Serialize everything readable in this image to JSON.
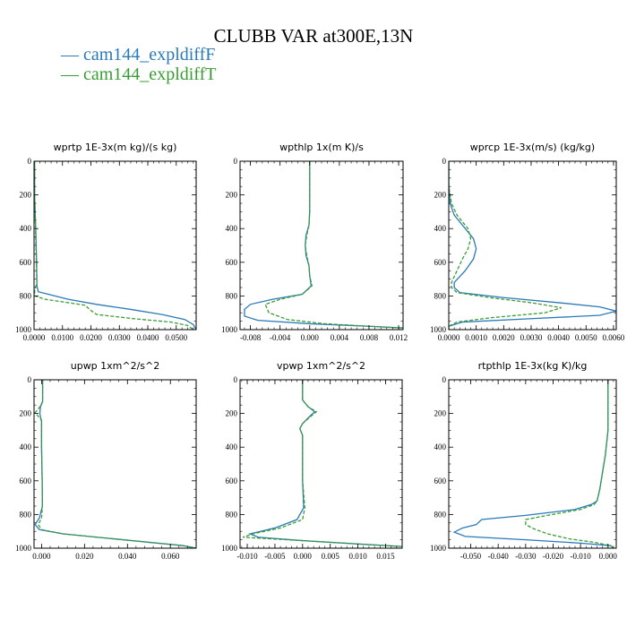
{
  "title": "CLUBB VAR at300E,13N",
  "legend": [
    {
      "name": "cam144_expldiffF",
      "color": "#2a7ab8",
      "dash": "solid"
    },
    {
      "name": "cam144_expldiffT",
      "color": "#3a9d34",
      "dash": "dashed"
    }
  ],
  "chart_data": [
    {
      "type": "line",
      "title": "wprtp   1E-3x(m kg)/(s kg)",
      "xlim": [
        0,
        0.057
      ],
      "ylim": [
        1000,
        0
      ],
      "xticks": [
        0,
        0.01,
        0.02,
        0.03,
        0.04,
        0.05
      ],
      "xtick_labels": [
        "0.0000",
        "0.0100",
        "0.0200",
        "0.0300",
        "0.0400",
        "0.0500"
      ],
      "yticks": [
        0,
        200,
        400,
        600,
        800,
        1000
      ],
      "ytick_labels": [
        "0",
        "200",
        "400",
        "600",
        "800",
        "1000"
      ],
      "series": [
        {
          "name": "cam144_expldiffF",
          "points": [
            [
              0.0002,
              0
            ],
            [
              0.0002,
              200
            ],
            [
              0.0006,
              400
            ],
            [
              0.0009,
              600
            ],
            [
              0.001,
              740
            ],
            [
              0.0015,
              775
            ],
            [
              0.005,
              790
            ],
            [
              0.012,
              820
            ],
            [
              0.022,
              850
            ],
            [
              0.034,
              880
            ],
            [
              0.045,
              910
            ],
            [
              0.053,
              940
            ],
            [
              0.056,
              970
            ],
            [
              0.057,
              1000
            ]
          ]
        },
        {
          "name": "cam144_expldiffT",
          "points": [
            [
              0.0002,
              0
            ],
            [
              0.0002,
              200
            ],
            [
              0.0005,
              400
            ],
            [
              0.0008,
              600
            ],
            [
              0.001,
              720
            ],
            [
              0.0002,
              770
            ],
            [
              0.0003,
              800
            ],
            [
              0.004,
              820
            ],
            [
              0.012,
              840
            ],
            [
              0.018,
              855
            ],
            [
              0.0195,
              880
            ],
            [
              0.022,
              910
            ],
            [
              0.035,
              935
            ],
            [
              0.048,
              955
            ],
            [
              0.054,
              975
            ],
            [
              0.056,
              1000
            ]
          ]
        }
      ]
    },
    {
      "type": "line",
      "title": "wpthlp   1x(m K)/s",
      "xlim": [
        -0.0094,
        0.0126
      ],
      "ylim": [
        1000,
        0
      ],
      "xticks": [
        -0.008,
        -0.004,
        0,
        0.004,
        0.008,
        0.012
      ],
      "xtick_labels": [
        "-0.008",
        "-0.004",
        "0.000",
        "0.004",
        "0.008",
        "0.012"
      ],
      "yticks": [
        0,
        200,
        400,
        600,
        800,
        1000
      ],
      "ytick_labels": [
        "0",
        "200",
        "400",
        "600",
        "800",
        "1000"
      ],
      "series": [
        {
          "name": "cam144_expldiffF",
          "points": [
            [
              0,
              0
            ],
            [
              0,
              200
            ],
            [
              0,
              300
            ],
            [
              -0.0001,
              380
            ],
            [
              -0.0005,
              440
            ],
            [
              -0.0006,
              500
            ],
            [
              -0.0005,
              560
            ],
            [
              -0.0001,
              620
            ],
            [
              0,
              680
            ],
            [
              0.0002,
              740
            ],
            [
              -0.001,
              790
            ],
            [
              -0.005,
              820
            ],
            [
              -0.008,
              850
            ],
            [
              -0.0088,
              880
            ],
            [
              -0.0088,
              920
            ],
            [
              -0.007,
              945
            ],
            [
              0.0,
              965
            ],
            [
              0.008,
              980
            ],
            [
              0.0126,
              990
            ]
          ]
        },
        {
          "name": "cam144_expldiffT",
          "points": [
            [
              0,
              0
            ],
            [
              0,
              200
            ],
            [
              0,
              300
            ],
            [
              -0.0001,
              380
            ],
            [
              -0.0004,
              440
            ],
            [
              -0.0006,
              500
            ],
            [
              -0.0004,
              560
            ],
            [
              -0.0001,
              620
            ],
            [
              0,
              680
            ],
            [
              0.0003,
              740
            ],
            [
              -0.001,
              790
            ],
            [
              -0.004,
              820
            ],
            [
              -0.006,
              850
            ],
            [
              -0.0055,
              900
            ],
            [
              -0.003,
              940
            ],
            [
              0.002,
              965
            ],
            [
              0.008,
              980
            ],
            [
              0.0126,
              990
            ]
          ]
        }
      ]
    },
    {
      "type": "line",
      "title": "wprcp   1E-3x(m/s) (kg/kg)",
      "xlim": [
        0,
        0.0061
      ],
      "ylim": [
        1000,
        0
      ],
      "xticks": [
        0,
        0.001,
        0.002,
        0.003,
        0.004,
        0.005,
        0.006
      ],
      "xtick_labels": [
        "0.0000",
        "0.0010",
        "0.0020",
        "0.0030",
        "0.0040",
        "0.0050",
        "0.0060"
      ],
      "yticks": [
        0,
        200,
        400,
        600,
        800,
        1000
      ],
      "ytick_labels": [
        "0",
        "200",
        "400",
        "600",
        "800",
        "1000"
      ],
      "series": [
        {
          "name": "cam144_expldiffF",
          "points": [
            [
              0,
              0
            ],
            [
              0,
              150
            ],
            [
              5e-05,
              250
            ],
            [
              0.0002,
              320
            ],
            [
              0.0006,
              400
            ],
            [
              0.0009,
              460
            ],
            [
              0.001,
              520
            ],
            [
              0.0009,
              580
            ],
            [
              0.0006,
              650
            ],
            [
              0.0002,
              720
            ],
            [
              0.0002,
              750
            ],
            [
              0.0004,
              780
            ],
            [
              0.002,
              810
            ],
            [
              0.004,
              840
            ],
            [
              0.0055,
              865
            ],
            [
              0.0061,
              890
            ],
            [
              0.0055,
              915
            ],
            [
              0.003,
              935
            ],
            [
              0.0005,
              955
            ],
            [
              0,
              980
            ],
            [
              0,
              1000
            ]
          ]
        },
        {
          "name": "cam144_expldiffT",
          "points": [
            [
              0,
              0
            ],
            [
              0,
              150
            ],
            [
              0.0001,
              250
            ],
            [
              0.0003,
              320
            ],
            [
              0.0007,
              400
            ],
            [
              0.0008,
              460
            ],
            [
              0.0007,
              520
            ],
            [
              0.0005,
              580
            ],
            [
              0.0003,
              650
            ],
            [
              0.0001,
              720
            ],
            [
              0.0001,
              750
            ],
            [
              0.0003,
              780
            ],
            [
              0.0015,
              810
            ],
            [
              0.003,
              840
            ],
            [
              0.0041,
              870
            ],
            [
              0.0035,
              900
            ],
            [
              0.0015,
              930
            ],
            [
              0.0003,
              955
            ],
            [
              0,
              980
            ],
            [
              0,
              1000
            ]
          ]
        }
      ]
    },
    {
      "type": "line",
      "title": "upwp   1xm^2/s^2",
      "xlim": [
        -0.0035,
        0.072
      ],
      "ylim": [
        1000,
        0
      ],
      "xticks": [
        0,
        0.02,
        0.04,
        0.06
      ],
      "xtick_labels": [
        "0.000",
        "0.020",
        "0.040",
        "0.060"
      ],
      "yticks": [
        0,
        200,
        400,
        600,
        800,
        1000
      ],
      "ytick_labels": [
        "0",
        "200",
        "400",
        "600",
        "800",
        "1000"
      ],
      "series": [
        {
          "name": "cam144_expldiffF",
          "points": [
            [
              0.0005,
              0
            ],
            [
              0.0005,
              130
            ],
            [
              -0.0005,
              160
            ],
            [
              -0.0008,
              200
            ],
            [
              0,
              250
            ],
            [
              0,
              400
            ],
            [
              0.0003,
              600
            ],
            [
              0.0004,
              750
            ],
            [
              -0.001,
              820
            ],
            [
              -0.003,
              860
            ],
            [
              -0.001,
              890
            ],
            [
              0.01,
              915
            ],
            [
              0.03,
              940
            ],
            [
              0.05,
              965
            ],
            [
              0.066,
              985
            ],
            [
              0.072,
              1000
            ]
          ]
        },
        {
          "name": "cam144_expldiffT",
          "points": [
            [
              0.0005,
              0
            ],
            [
              0.0005,
              130
            ],
            [
              -0.001,
              165
            ],
            [
              -0.003,
              195
            ],
            [
              0,
              240
            ],
            [
              0,
              400
            ],
            [
              0.0003,
              600
            ],
            [
              0.0004,
              750
            ],
            [
              0,
              820
            ],
            [
              -0.0015,
              860
            ],
            [
              0,
              890
            ],
            [
              0.01,
              915
            ],
            [
              0.03,
              940
            ],
            [
              0.05,
              965
            ],
            [
              0.066,
              985
            ],
            [
              0.072,
              1000
            ]
          ]
        }
      ]
    },
    {
      "type": "line",
      "title": "vpwp   1xm^2/s^2",
      "xlim": [
        -0.0113,
        0.018
      ],
      "ylim": [
        1000,
        0
      ],
      "xticks": [
        -0.01,
        -0.005,
        0,
        0.005,
        0.01,
        0.015
      ],
      "xtick_labels": [
        "-0.010",
        "-0.005",
        "0.000",
        "0.005",
        "0.010",
        "0.015"
      ],
      "yticks": [
        0,
        200,
        400,
        600,
        800,
        1000
      ],
      "ytick_labels": [
        "0",
        "200",
        "400",
        "600",
        "800",
        "1000"
      ],
      "series": [
        {
          "name": "cam144_expldiffF",
          "points": [
            [
              0,
              0
            ],
            [
              0,
              120
            ],
            [
              0.001,
              160
            ],
            [
              0.0022,
              190
            ],
            [
              0.0012,
              220
            ],
            [
              0,
              260
            ],
            [
              -0.0005,
              290
            ],
            [
              0,
              330
            ],
            [
              0,
              600
            ],
            [
              0.0002,
              760
            ],
            [
              -0.001,
              830
            ],
            [
              -0.005,
              880
            ],
            [
              -0.0095,
              915
            ],
            [
              -0.008,
              935
            ],
            [
              0,
              955
            ],
            [
              0.01,
              975
            ],
            [
              0.018,
              990
            ]
          ]
        },
        {
          "name": "cam144_expldiffT",
          "points": [
            [
              0,
              0
            ],
            [
              0,
              120
            ],
            [
              0.001,
              160
            ],
            [
              0.0025,
              190
            ],
            [
              0.0012,
              225
            ],
            [
              0,
              260
            ],
            [
              -0.0005,
              290
            ],
            [
              0,
              330
            ],
            [
              0,
              600
            ],
            [
              0.0004,
              760
            ],
            [
              0,
              830
            ],
            [
              -0.004,
              880
            ],
            [
              -0.009,
              915
            ],
            [
              -0.0108,
              935
            ],
            [
              0,
              955
            ],
            [
              0.01,
              975
            ],
            [
              0.018,
              990
            ]
          ]
        }
      ]
    },
    {
      "type": "line",
      "title": "rtpthlp   1E-3x(kg K)/kg",
      "xlim": [
        -0.058,
        0.003
      ],
      "ylim": [
        1000,
        0
      ],
      "xticks": [
        -0.05,
        -0.04,
        -0.03,
        -0.02,
        -0.01,
        0
      ],
      "xtick_labels": [
        "-0.050",
        "-0.040",
        "-0.030",
        "-0.020",
        "-0.010",
        "0.000"
      ],
      "yticks": [
        0,
        200,
        400,
        600,
        800,
        1000
      ],
      "ytick_labels": [
        "0",
        "200",
        "400",
        "600",
        "800",
        "1000"
      ],
      "series": [
        {
          "name": "cam144_expldiffF",
          "points": [
            [
              0,
              0
            ],
            [
              0,
              300
            ],
            [
              -0.001,
              450
            ],
            [
              -0.002,
              550
            ],
            [
              -0.003,
              650
            ],
            [
              -0.004,
              720
            ],
            [
              -0.006,
              740
            ],
            [
              -0.012,
              770
            ],
            [
              -0.03,
              805
            ],
            [
              -0.046,
              830
            ],
            [
              -0.048,
              860
            ],
            [
              -0.053,
              880
            ],
            [
              -0.056,
              905
            ],
            [
              -0.052,
              930
            ],
            [
              -0.03,
              950
            ],
            [
              -0.01,
              970
            ],
            [
              0.001,
              985
            ],
            [
              0.002,
              1000
            ]
          ]
        },
        {
          "name": "cam144_expldiffT",
          "points": [
            [
              0,
              0
            ],
            [
              0,
              300
            ],
            [
              -0.001,
              450
            ],
            [
              -0.002,
              550
            ],
            [
              -0.003,
              650
            ],
            [
              -0.004,
              720
            ],
            [
              -0.005,
              740
            ],
            [
              -0.01,
              770
            ],
            [
              -0.022,
              805
            ],
            [
              -0.03,
              830
            ],
            [
              -0.03,
              860
            ],
            [
              -0.027,
              885
            ],
            [
              -0.022,
              915
            ],
            [
              -0.014,
              945
            ],
            [
              -0.005,
              965
            ],
            [
              0.001,
              985
            ],
            [
              0.002,
              1000
            ]
          ]
        }
      ]
    }
  ]
}
